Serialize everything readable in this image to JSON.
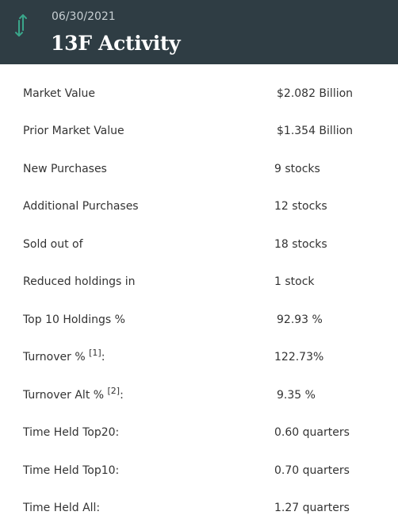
{
  "header": {
    "date": "06/30/2021",
    "title": "13F Activity",
    "icon": "sort-arrows-icon",
    "icon_color": "#3aa58a",
    "background": "#2f3d44"
  },
  "rows": [
    {
      "label": "Market Value",
      "value": "$2.082 Billion"
    },
    {
      "label": "Prior Market Value",
      "value": "$1.354 Billion"
    },
    {
      "label": "New Purchases",
      "value": "9 stocks"
    },
    {
      "label": "Additional Purchases",
      "value": "12 stocks"
    },
    {
      "label": "Sold out of",
      "value": "18 stocks"
    },
    {
      "label": "Reduced holdings in",
      "value": "1 stock"
    },
    {
      "label": "Top 10 Holdings %",
      "value": "92.93 %"
    },
    {
      "label": "Turnover %",
      "footnote": "[1]",
      "suffix": ":",
      "value": "122.73%"
    },
    {
      "label": "Turnover Alt %",
      "footnote": "[2]",
      "suffix": ":",
      "value": "9.35 %"
    },
    {
      "label": "Time Held Top20:",
      "value": "0.60 quarters"
    },
    {
      "label": "Time Held Top10:",
      "value": "0.70 quarters"
    },
    {
      "label": "Time Held All:",
      "value": "1.27 quarters"
    }
  ]
}
